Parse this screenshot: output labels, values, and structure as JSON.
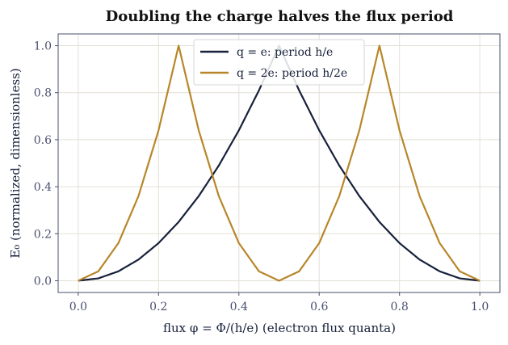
{
  "chart_data": {
    "type": "line",
    "title": "Doubling the charge halves the flux period",
    "xlabel": "flux φ = Φ/(h/e) (electron flux quanta)",
    "ylabel": "E₀ (normalized, dimensionless)",
    "xlim": [
      -0.05,
      1.05
    ],
    "ylim": [
      -0.05,
      1.05
    ],
    "xticks": [
      0.0,
      0.2,
      0.4,
      0.6,
      0.8,
      1.0
    ],
    "xtick_labels": [
      "0.0",
      "0.2",
      "0.4",
      "0.6",
      "0.8",
      "1.0"
    ],
    "yticks": [
      0.0,
      0.2,
      0.4,
      0.6,
      0.8,
      1.0
    ],
    "ytick_labels": [
      "0.0",
      "0.2",
      "0.4",
      "0.6",
      "0.8",
      "1.0"
    ],
    "grid": true,
    "legend_position": "top-center",
    "x": [
      0.0,
      0.05,
      0.1,
      0.15,
      0.2,
      0.25,
      0.3,
      0.35,
      0.4,
      0.45,
      0.5,
      0.55,
      0.6,
      0.65,
      0.7,
      0.75,
      0.8,
      0.85,
      0.9,
      0.95,
      1.0
    ],
    "series": [
      {
        "name": "q = e: period h/e",
        "color": "#17213b",
        "values": [
          0.0,
          0.01,
          0.04,
          0.09,
          0.16,
          0.25,
          0.36,
          0.49,
          0.64,
          0.81,
          1.0,
          0.81,
          0.64,
          0.49,
          0.36,
          0.25,
          0.16,
          0.09,
          0.04,
          0.01,
          0.0
        ]
      },
      {
        "name": "q = 2e: period h/2e",
        "color": "#b8862a",
        "values": [
          0.0,
          0.04,
          0.16,
          0.36,
          0.64,
          1.0,
          0.64,
          0.36,
          0.16,
          0.04,
          0.0,
          0.04,
          0.16,
          0.36,
          0.64,
          1.0,
          0.64,
          0.36,
          0.16,
          0.04,
          0.0
        ]
      }
    ]
  }
}
